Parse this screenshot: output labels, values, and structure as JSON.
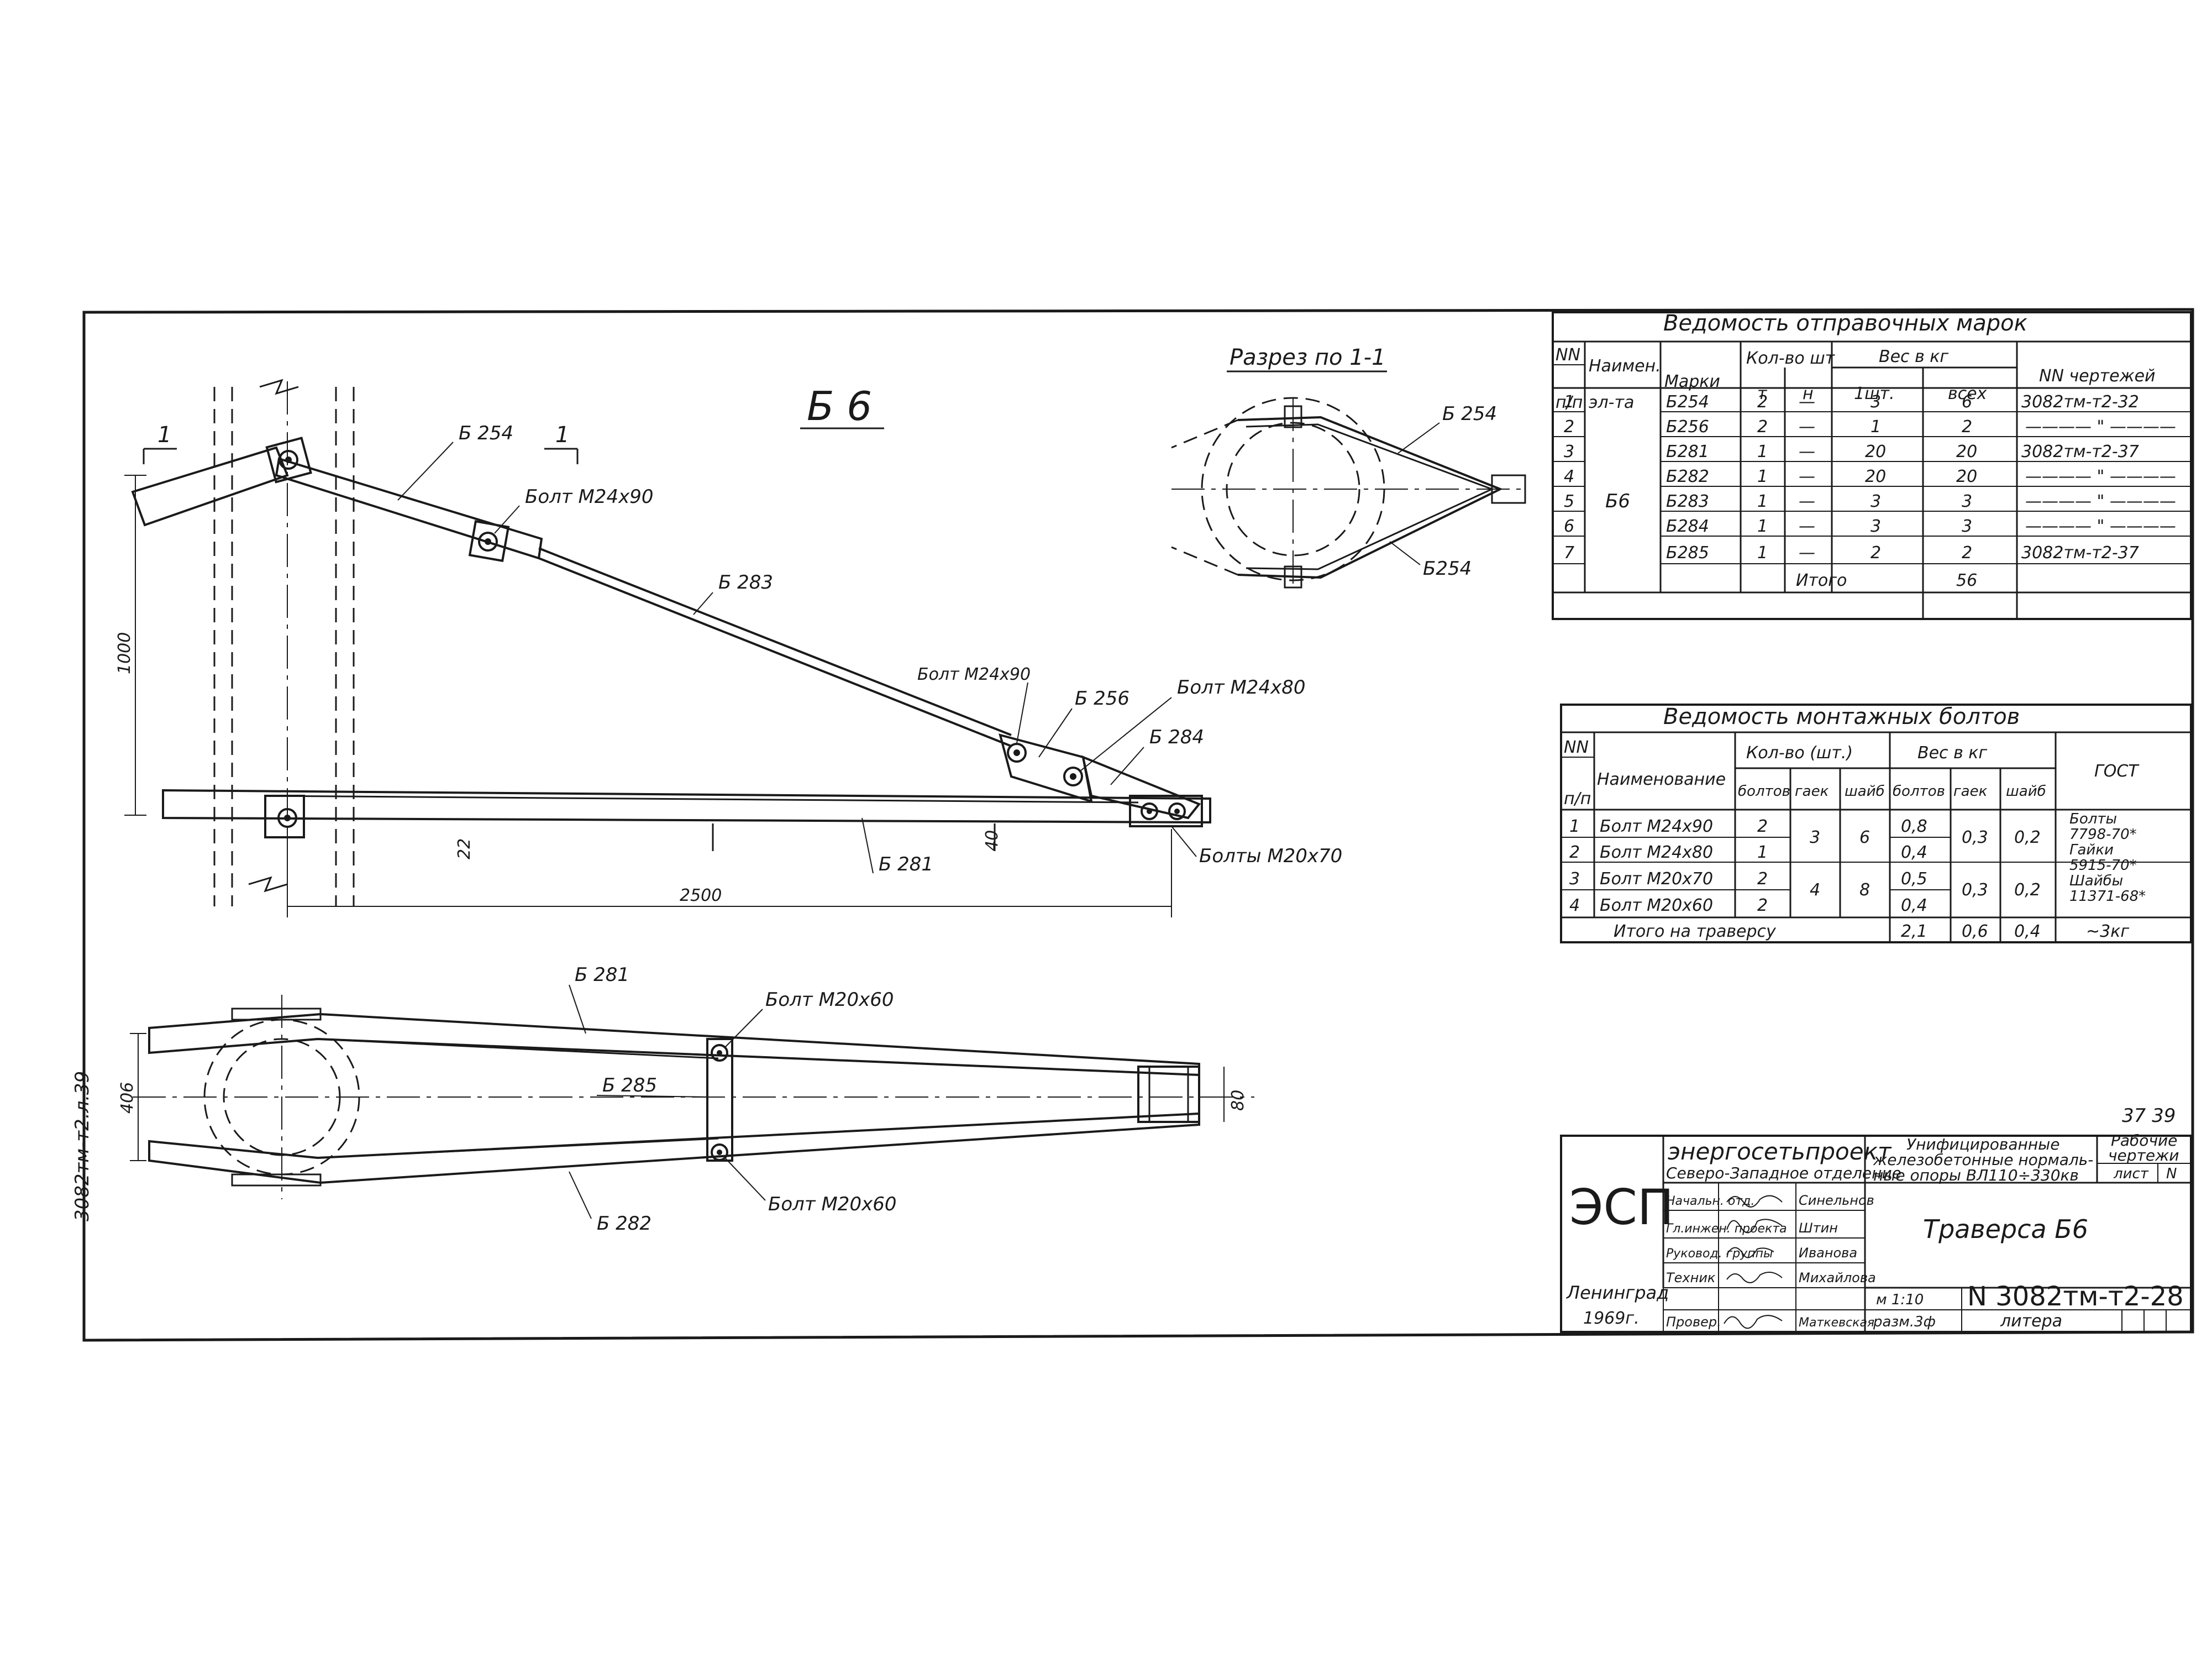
{
  "drawing": {
    "title_mark": "Б 6",
    "section_title": "Разрез по 1-1",
    "section_marker": "1",
    "side_code": "3082тм-т2.л.39",
    "sheet_stamp": "37 39"
  },
  "front_view": {
    "labels": {
      "b254": "Б 254",
      "b283": "Б 283",
      "b256": "Б 256",
      "b284": "Б 284",
      "b281": "Б 281",
      "bolt_m24x90_a": "Болт М24х90",
      "bolt_m24x90_b": "Болт М24х90",
      "bolt_m24x80": "Болт М24х80",
      "bolts_m20x70": "Болты М20х70"
    },
    "dims": {
      "height": "1000",
      "length": "2500",
      "d22": "22",
      "d40": "40"
    }
  },
  "section_view": {
    "label_top": "Б 254",
    "label_bottom": "Б254"
  },
  "plan_view": {
    "labels": {
      "b281": "Б 281",
      "b285": "Б 285",
      "b282": "Б 282",
      "bolt_top": "Болт М20х60",
      "bolt_bottom": "Болт М20х60"
    },
    "dims": {
      "d406": "406",
      "d80": "80"
    }
  },
  "shipping_table": {
    "title": "Ведомость отправочных марок",
    "headers": {
      "nn": "NN",
      "pp": "п/п",
      "name1": "Наимен.",
      "name2": "эл-та",
      "marks": "Марки",
      "qty": "Кол-во шт",
      "qty_t": "т",
      "qty_n": "н",
      "weight": "Вес в кг",
      "w1": "1шт.",
      "wall": "всех",
      "drawings": "NN чертежей"
    },
    "element": "Б6",
    "rows": [
      {
        "n": "1",
        "mark": "Б254",
        "t": "2",
        "h": "—",
        "w1": "3",
        "wall": "6",
        "dwg": "3082тм-т2-32"
      },
      {
        "n": "2",
        "mark": "Б256",
        "t": "2",
        "h": "—",
        "w1": "1",
        "wall": "2",
        "dwg": "———— \" ————"
      },
      {
        "n": "3",
        "mark": "Б281",
        "t": "1",
        "h": "—",
        "w1": "20",
        "wall": "20",
        "dwg": "3082тм-т2-37"
      },
      {
        "n": "4",
        "mark": "Б282",
        "t": "1",
        "h": "—",
        "w1": "20",
        "wall": "20",
        "dwg": "———— \" ————"
      },
      {
        "n": "5",
        "mark": "Б283",
        "t": "1",
        "h": "—",
        "w1": "3",
        "wall": "3",
        "dwg": "———— \" ————"
      },
      {
        "n": "6",
        "mark": "Б284",
        "t": "1",
        "h": "—",
        "w1": "3",
        "wall": "3",
        "dwg": "———— \" ————"
      },
      {
        "n": "7",
        "mark": "Б285",
        "t": "1",
        "h": "—",
        "w1": "2",
        "wall": "2",
        "dwg": "3082тм-т2-37"
      }
    ],
    "total_label": "Итого",
    "total_value": "56"
  },
  "bolts_table": {
    "title": "Ведомость монтажных болтов",
    "headers": {
      "nn": "NN",
      "pp": "п/п",
      "name": "Наименование",
      "qty": "Кол-во (шт.)",
      "bolts": "болтов",
      "nuts": "гаек",
      "washers": "шайб",
      "weight": "Вес в кг",
      "gost": "ГОСТ"
    },
    "rows": [
      {
        "n": "1",
        "name": "Болт М24х90",
        "bolts": "2",
        "wb": "0,8"
      },
      {
        "n": "2",
        "name": "Болт М24х80",
        "bolts": "1",
        "wb": "0,4"
      },
      {
        "n": "3",
        "name": "Болт М20х70",
        "bolts": "2",
        "wb": "0,5"
      },
      {
        "n": "4",
        "name": "Болт М20х60",
        "bolts": "2",
        "wb": "0,4"
      }
    ],
    "group1": {
      "nuts": "3",
      "washers": "6",
      "wn": "0,3",
      "ww": "0,2"
    },
    "group2": {
      "nuts": "4",
      "washers": "8",
      "wn": "0,3",
      "ww": "0,2"
    },
    "gost_lines": [
      "Болты",
      "7798-70*",
      "Гайки",
      "5915-70*",
      "Шайбы",
      "11371-68*"
    ],
    "gost_total": "~3кг",
    "total_label": "Итого на траверсу",
    "total_wb": "2,1",
    "total_wn": "0,6",
    "total_ww": "0,4"
  },
  "title_block": {
    "logo": "ЭСП",
    "org": "энергосетьпроект",
    "branch": "Северо-Западное отделение",
    "project": [
      "Унифицированные",
      "железобетонные нормаль-",
      "ные опоры ВЛ110÷330кв"
    ],
    "doc_type": [
      "Рабочие",
      "чертежи"
    ],
    "sheet_label": "лист",
    "sheet_no": "N",
    "roles": [
      "Начальн. отд.",
      "Гл.инжен. проекта",
      "Руковод. группы",
      "Техник",
      "Провер."
    ],
    "names": [
      "Синельнов",
      "Штин",
      "Иванова",
      "Михайлова",
      "Маткевская"
    ],
    "city": "Ленинград",
    "year": "1969г.",
    "scale": "м 1:10",
    "format": "разм.3ф",
    "drawing_title": "Траверса Б6",
    "doc_number": "N 3082тм-т2-28",
    "litera": "литера"
  }
}
